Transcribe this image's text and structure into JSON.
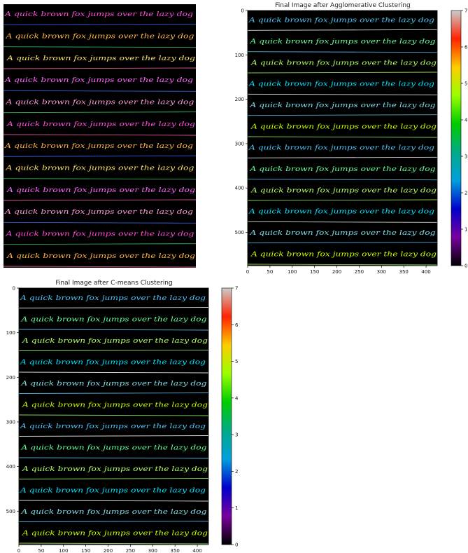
{
  "figure": {
    "panels": [
      {
        "id": "original",
        "title": "",
        "has_axes": false,
        "has_colorbar": false
      },
      {
        "id": "agglomerative",
        "title": "Final Image after Agglomerative Clustering",
        "has_axes": true,
        "has_colorbar": true
      },
      {
        "id": "cmeans",
        "title": "Final Image after C-means Clustering",
        "has_axes": true,
        "has_colorbar": true
      }
    ]
  },
  "image_text": {
    "line": "A quick brown fox jumps over the lazy dog",
    "line_count": 12
  },
  "chart_data": [
    {
      "type": "heatmap",
      "title": "",
      "description_source": "raw handwriting image",
      "axes": false
    },
    {
      "type": "heatmap",
      "title": "Final Image after Agglomerative Clustering",
      "xlim": [
        0,
        425
      ],
      "ylim": [
        575,
        0
      ],
      "x_ticks": [
        0,
        50,
        100,
        150,
        200,
        250,
        300,
        350,
        400
      ],
      "y_ticks": [
        0,
        100,
        200,
        300,
        400,
        500
      ],
      "colorbar": {
        "min": 0,
        "max": 7,
        "colormap": "nipy_spectral",
        "ticks": [
          0,
          1,
          2,
          3,
          4,
          5,
          6,
          7
        ]
      }
    },
    {
      "type": "heatmap",
      "title": "Final Image after C-means Clustering",
      "xlim": [
        0,
        425
      ],
      "ylim": [
        575,
        0
      ],
      "x_ticks": [
        0,
        50,
        100,
        150,
        200,
        250,
        300,
        350,
        400
      ],
      "y_ticks": [
        0,
        100,
        200,
        300,
        400,
        500
      ],
      "colorbar": {
        "min": 0,
        "max": 7,
        "colormap": "nipy_spectral",
        "ticks": [
          0,
          1,
          2,
          3,
          4,
          5,
          6,
          7
        ]
      }
    }
  ],
  "palette": {
    "original": [
      "#ff4fd8",
      "#ffb347",
      "#ffe066",
      "#ff66ff",
      "#ff9ad5"
    ],
    "clustered": [
      "#4fc3f7",
      "#66ff99",
      "#b3ff66",
      "#00e5ff",
      "#80deea",
      "#c6ff00"
    ],
    "cmap": [
      "#000000",
      "#7a00a0",
      "#0000cc",
      "#00a0dd",
      "#00aa88",
      "#00cc00",
      "#99ff00",
      "#ffcc00",
      "#ff2200",
      "#cccccc"
    ]
  }
}
